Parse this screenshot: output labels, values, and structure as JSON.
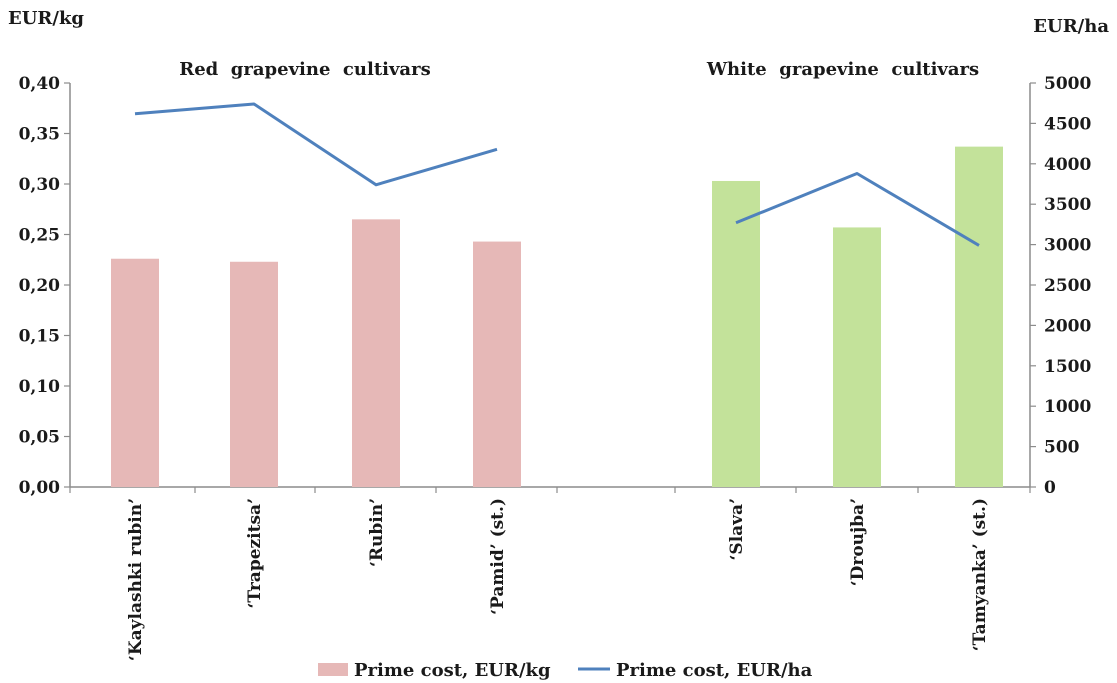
{
  "chart_data": {
    "type": "bar",
    "y_left_unit": "EUR/kg",
    "y_right_unit": "EUR/ha",
    "group_labels": [
      "Red  grapevine  cultivars",
      "White  grapevine  cultivars"
    ],
    "categories": [
      "‘Kaylashki rubin’",
      "‘Trapezitsa’",
      "‘Rubin’",
      "‘Pamid’ (st.)",
      "‘Slava’",
      "‘Droujba’",
      "‘Tamyanka’ (st.)"
    ],
    "category_group": [
      0,
      0,
      0,
      0,
      1,
      1,
      1
    ],
    "ylim_left": [
      0,
      0.4
    ],
    "yticks_left": [
      "0,00",
      "0,05",
      "0,10",
      "0,15",
      "0,20",
      "0,25",
      "0,30",
      "0,35",
      "0,40"
    ],
    "ylim_right": [
      0,
      5000
    ],
    "yticks_right": [
      "0",
      "500",
      "1000",
      "1500",
      "2000",
      "2500",
      "3000",
      "3500",
      "4000",
      "4500",
      "5000"
    ],
    "series": [
      {
        "name": "Prime cost, EUR/kg",
        "type": "bar",
        "axis": "left",
        "values": [
          0.226,
          0.223,
          0.265,
          0.243,
          0.303,
          0.257,
          0.337
        ]
      },
      {
        "name": "Prime cost, EUR/ha",
        "type": "line",
        "axis": "right",
        "segments": [
          {
            "categories": [
              0,
              1,
              2,
              3
            ],
            "values": [
              4620,
              4740,
              3740,
              4180
            ]
          },
          {
            "categories": [
              4,
              5,
              6
            ],
            "values": [
              3270,
              3880,
              2990
            ]
          }
        ]
      }
    ],
    "colors": {
      "red_bar": "#e6b8b7",
      "white_bar": "#c3e29a",
      "line": "#4f81bd",
      "axis": "#8c8c8c"
    },
    "legend_position": "bottom",
    "grid": false
  }
}
